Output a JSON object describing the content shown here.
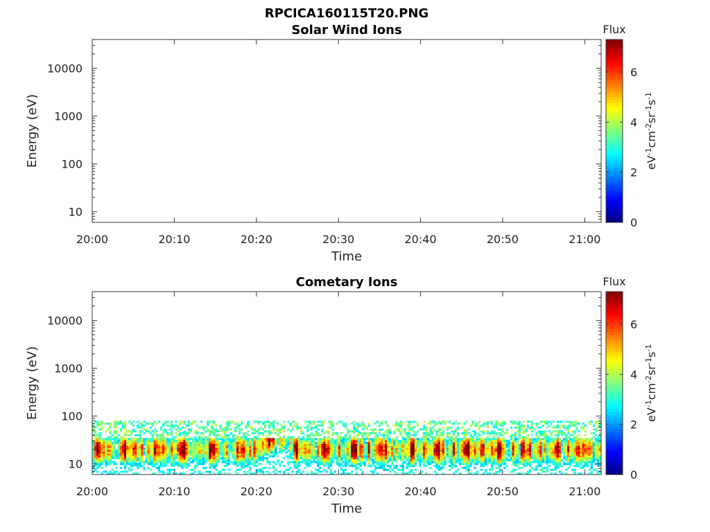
{
  "figure_title": "RPCICA160115T20.PNG",
  "colormap": [
    "#00007f",
    "#0000ff",
    "#007fff",
    "#00ffff",
    "#7fff7f",
    "#ffff00",
    "#ff7f00",
    "#ff0000",
    "#7f0000"
  ],
  "colorbar": {
    "label": "Flux",
    "unit_parts": [
      {
        "t": "eV",
        "sup": false
      },
      {
        "t": "-1",
        "sup": true
      },
      {
        "t": "cm",
        "sup": false
      },
      {
        "t": "-2",
        "sup": true
      },
      {
        "t": "sr",
        "sup": false
      },
      {
        "t": "-1",
        "sup": true
      },
      {
        "t": "s",
        "sup": false
      },
      {
        "t": "-1",
        "sup": true
      }
    ],
    "range": [
      0,
      7.3
    ],
    "ticks": [
      0,
      2,
      4,
      6
    ]
  },
  "chart_data": [
    {
      "type": "heatmap",
      "title": "Solar Wind Ions",
      "xlabel": "Time",
      "ylabel": "Energy (eV)",
      "yscale": "log",
      "ylim": [
        6,
        40000
      ],
      "yticks": [
        10,
        100,
        1000,
        10000
      ],
      "ytick_labels": [
        "10",
        "100",
        "1000",
        "10000"
      ],
      "xlim": [
        "20:00",
        "21:02"
      ],
      "xticks": [
        "20:00",
        "20:10",
        "20:20",
        "20:30",
        "20:40",
        "20:50",
        "21:00"
      ],
      "data": "none"
    },
    {
      "type": "heatmap",
      "title": "Cometary Ions",
      "xlabel": "Time",
      "ylabel": "Energy (eV)",
      "yscale": "log",
      "ylim": [
        6,
        40000
      ],
      "yticks": [
        10,
        100,
        1000,
        10000
      ],
      "ytick_labels": [
        "10",
        "100",
        "1000",
        "10000"
      ],
      "xlim": [
        "20:00",
        "21:02"
      ],
      "xticks": [
        "20:00",
        "20:10",
        "20:20",
        "20:30",
        "20:40",
        "20:50",
        "21:00"
      ],
      "signal_energy_range": [
        6,
        80
      ],
      "peak_energy": 20,
      "peak_flux": 7,
      "enhancement": {
        "time_range": [
          "20:20",
          "20:25"
        ],
        "energy_range": [
          15,
          45
        ]
      }
    }
  ]
}
